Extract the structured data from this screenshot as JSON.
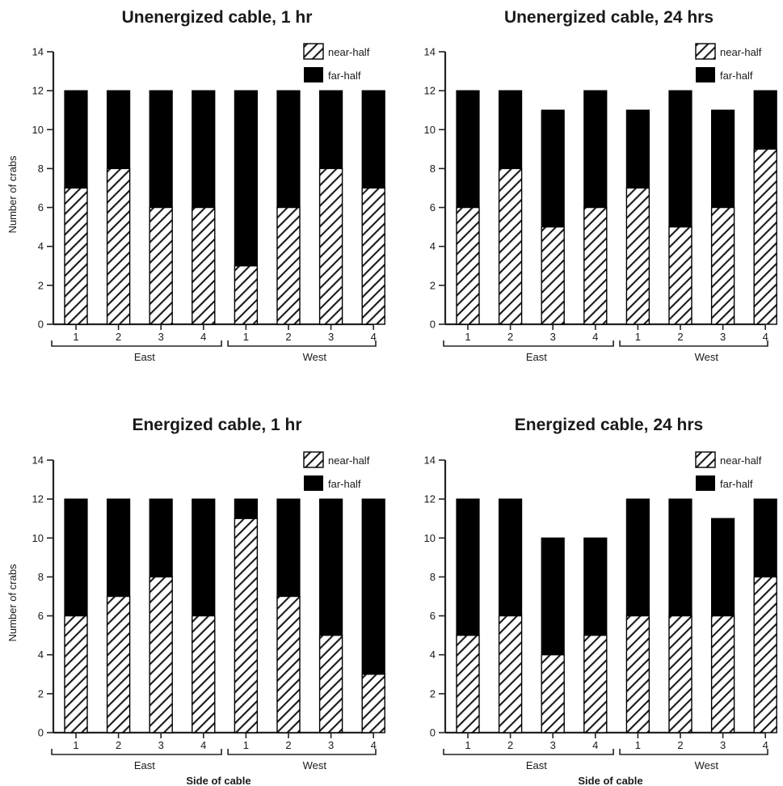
{
  "chart_data": [
    {
      "type": "bar",
      "stacked": true,
      "title": "Unenergized cable, 1 hr",
      "ylabel": "Number of crabs",
      "xlabel": "",
      "ylim": [
        0,
        14
      ],
      "yticks": [
        0,
        2,
        4,
        6,
        8,
        10,
        12,
        14
      ],
      "categories": [
        "1",
        "2",
        "3",
        "4",
        "1",
        "2",
        "3",
        "4"
      ],
      "groups": [
        {
          "label": "East",
          "count": 4
        },
        {
          "label": "West",
          "count": 4
        }
      ],
      "series": [
        {
          "name": "near-half",
          "values": [
            7,
            8,
            6,
            6,
            3,
            6,
            8,
            7
          ]
        },
        {
          "name": "far-half",
          "values": [
            5,
            4,
            6,
            6,
            9,
            6,
            4,
            5
          ]
        }
      ],
      "legend": "top-right"
    },
    {
      "type": "bar",
      "stacked": true,
      "title": "Unenergized cable, 24 hrs",
      "ylabel": "",
      "xlabel": "",
      "ylim": [
        0,
        14
      ],
      "yticks": [
        0,
        2,
        4,
        6,
        8,
        10,
        12,
        14
      ],
      "categories": [
        "1",
        "2",
        "3",
        "4",
        "1",
        "2",
        "3",
        "4"
      ],
      "groups": [
        {
          "label": "East",
          "count": 4
        },
        {
          "label": "West",
          "count": 4
        }
      ],
      "series": [
        {
          "name": "near-half",
          "values": [
            6,
            8,
            5,
            6,
            7,
            5,
            6,
            9
          ]
        },
        {
          "name": "far-half",
          "values": [
            6,
            4,
            6,
            6,
            4,
            7,
            5,
            3
          ]
        }
      ],
      "legend": "top-right"
    },
    {
      "type": "bar",
      "stacked": true,
      "title": "Energized cable, 1 hr",
      "ylabel": "Number of crabs",
      "xlabel": "Side of cable",
      "ylim": [
        0,
        14
      ],
      "yticks": [
        0,
        2,
        4,
        6,
        8,
        10,
        12,
        14
      ],
      "categories": [
        "1",
        "2",
        "3",
        "4",
        "1",
        "2",
        "3",
        "4"
      ],
      "groups": [
        {
          "label": "East",
          "count": 4
        },
        {
          "label": "West",
          "count": 4
        }
      ],
      "series": [
        {
          "name": "near-half",
          "values": [
            6,
            7,
            8,
            6,
            11,
            7,
            5,
            3
          ]
        },
        {
          "name": "far-half",
          "values": [
            6,
            5,
            4,
            6,
            1,
            5,
            7,
            9
          ]
        }
      ],
      "legend": "top-right"
    },
    {
      "type": "bar",
      "stacked": true,
      "title": "Energized cable, 24 hrs",
      "ylabel": "",
      "xlabel": "Side of cable",
      "ylim": [
        0,
        14
      ],
      "yticks": [
        0,
        2,
        4,
        6,
        8,
        10,
        12,
        14
      ],
      "categories": [
        "1",
        "2",
        "3",
        "4",
        "1",
        "2",
        "3",
        "4"
      ],
      "groups": [
        {
          "label": "East",
          "count": 4
        },
        {
          "label": "West",
          "count": 4
        }
      ],
      "series": [
        {
          "name": "near-half",
          "values": [
            5,
            6,
            4,
            5,
            6,
            6,
            6,
            8
          ]
        },
        {
          "name": "far-half",
          "values": [
            7,
            6,
            6,
            5,
            6,
            6,
            5,
            4
          ]
        }
      ],
      "legend": "top-right"
    }
  ],
  "colors": {
    "far_half": "#000000",
    "hatch": "#1a1a1a",
    "axis": "#222222"
  }
}
